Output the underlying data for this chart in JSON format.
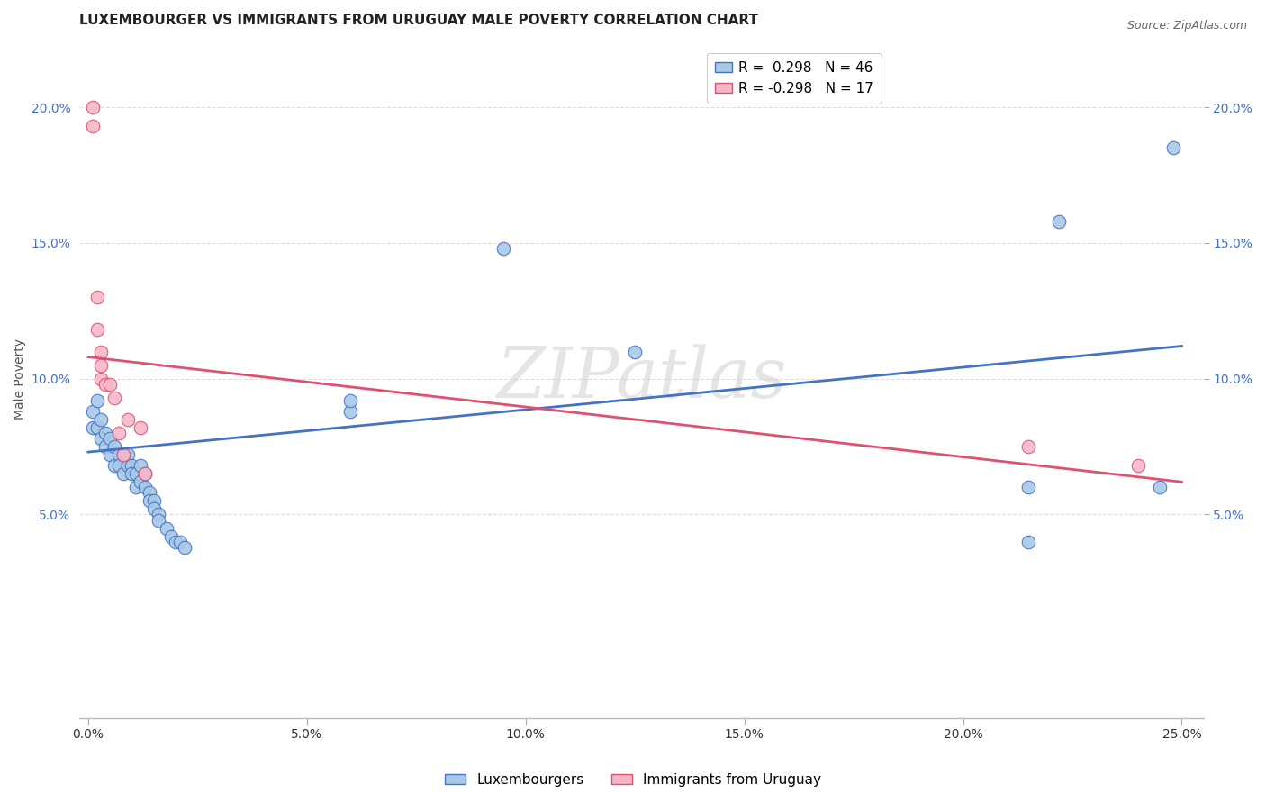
{
  "title": "LUXEMBOURGER VS IMMIGRANTS FROM URUGUAY MALE POVERTY CORRELATION CHART",
  "source": "Source: ZipAtlas.com",
  "ylabel": "Male Poverty",
  "watermark": "ZIPatlas",
  "xlim": [
    -0.002,
    0.255
  ],
  "ylim": [
    -0.025,
    0.225
  ],
  "xticks": [
    0.0,
    0.05,
    0.1,
    0.15,
    0.2,
    0.25
  ],
  "yticks": [
    0.05,
    0.1,
    0.15,
    0.2
  ],
  "ytick_labels": [
    "5.0%",
    "10.0%",
    "15.0%",
    "20.0%"
  ],
  "xtick_labels": [
    "0.0%",
    "5.0%",
    "10.0%",
    "15.0%",
    "20.0%",
    "25.0%"
  ],
  "legend_blue_label": "R =  0.298   N = 46",
  "legend_pink_label": "R = -0.298   N = 17",
  "blue_color": "#a8c8e8",
  "pink_color": "#f4b8c8",
  "blue_line_color": "#4472c4",
  "pink_line_color": "#e05070",
  "blue_scatter": [
    [
      0.001,
      0.088
    ],
    [
      0.001,
      0.082
    ],
    [
      0.002,
      0.092
    ],
    [
      0.002,
      0.082
    ],
    [
      0.003,
      0.078
    ],
    [
      0.003,
      0.085
    ],
    [
      0.004,
      0.075
    ],
    [
      0.004,
      0.08
    ],
    [
      0.005,
      0.078
    ],
    [
      0.005,
      0.072
    ],
    [
      0.006,
      0.075
    ],
    [
      0.006,
      0.068
    ],
    [
      0.007,
      0.072
    ],
    [
      0.007,
      0.068
    ],
    [
      0.008,
      0.072
    ],
    [
      0.008,
      0.065
    ],
    [
      0.009,
      0.068
    ],
    [
      0.009,
      0.072
    ],
    [
      0.01,
      0.068
    ],
    [
      0.01,
      0.065
    ],
    [
      0.011,
      0.065
    ],
    [
      0.011,
      0.06
    ],
    [
      0.012,
      0.068
    ],
    [
      0.012,
      0.062
    ],
    [
      0.013,
      0.065
    ],
    [
      0.013,
      0.06
    ],
    [
      0.014,
      0.058
    ],
    [
      0.014,
      0.055
    ],
    [
      0.015,
      0.055
    ],
    [
      0.015,
      0.052
    ],
    [
      0.016,
      0.05
    ],
    [
      0.016,
      0.048
    ],
    [
      0.018,
      0.045
    ],
    [
      0.019,
      0.042
    ],
    [
      0.02,
      0.04
    ],
    [
      0.021,
      0.04
    ],
    [
      0.022,
      0.038
    ],
    [
      0.06,
      0.088
    ],
    [
      0.06,
      0.092
    ],
    [
      0.095,
      0.148
    ],
    [
      0.125,
      0.11
    ],
    [
      0.215,
      0.06
    ],
    [
      0.215,
      0.04
    ],
    [
      0.222,
      0.158
    ],
    [
      0.245,
      0.06
    ],
    [
      0.248,
      0.185
    ]
  ],
  "pink_scatter": [
    [
      0.001,
      0.2
    ],
    [
      0.001,
      0.193
    ],
    [
      0.002,
      0.13
    ],
    [
      0.002,
      0.118
    ],
    [
      0.003,
      0.11
    ],
    [
      0.003,
      0.105
    ],
    [
      0.003,
      0.1
    ],
    [
      0.004,
      0.098
    ],
    [
      0.005,
      0.098
    ],
    [
      0.006,
      0.093
    ],
    [
      0.007,
      0.08
    ],
    [
      0.008,
      0.072
    ],
    [
      0.009,
      0.085
    ],
    [
      0.012,
      0.082
    ],
    [
      0.013,
      0.065
    ],
    [
      0.215,
      0.075
    ],
    [
      0.24,
      0.068
    ]
  ],
  "blue_line": {
    "x0": 0.0,
    "y0": 0.073,
    "x1": 0.25,
    "y1": 0.112
  },
  "pink_line": {
    "x0": 0.0,
    "y0": 0.108,
    "x1": 0.25,
    "y1": 0.062
  },
  "title_fontsize": 11,
  "axis_fontsize": 10,
  "tick_fontsize": 10,
  "marker_size": 110,
  "background_color": "#ffffff",
  "grid_color": "#dddddd"
}
